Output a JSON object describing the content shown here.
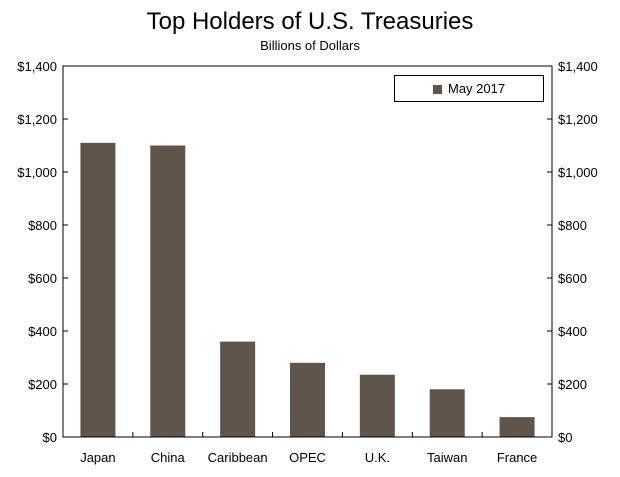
{
  "chart_data": {
    "type": "bar",
    "title": "Top Holders of U.S. Treasuries",
    "subtitle": "Billions of Dollars",
    "categories": [
      "Japan",
      "China",
      "Caribbean",
      "OPEC",
      "U.K.",
      "Taiwan",
      "France"
    ],
    "series": [
      {
        "name": "May 2017",
        "values": [
          1110,
          1100,
          360,
          280,
          235,
          180,
          75
        ]
      }
    ],
    "ylim": [
      0,
      1400
    ],
    "yticks": [
      0,
      200,
      400,
      600,
      800,
      1000,
      1200,
      1400
    ],
    "ytick_labels": [
      "$0",
      "$200",
      "$400",
      "$600",
      "$800",
      "$1,000",
      "$1,200",
      "$1,400"
    ],
    "secondary_y_axis": true,
    "grid": false,
    "legend_position": "top-right",
    "bar_color": "#5f554b"
  }
}
